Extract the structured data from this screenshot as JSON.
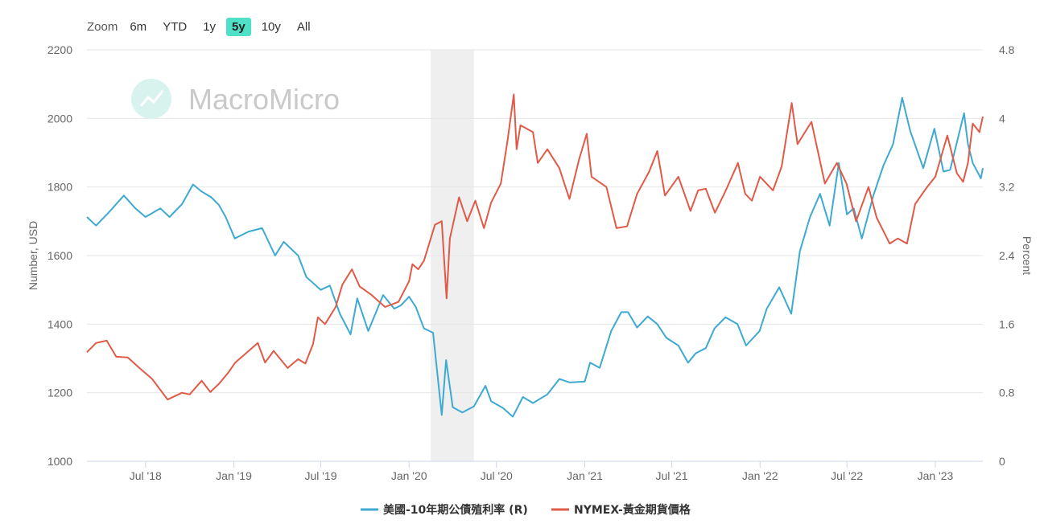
{
  "range_selector": {
    "zoom_label": "Zoom",
    "buttons": [
      "6m",
      "YTD",
      "1y",
      "5y",
      "10y",
      "All"
    ],
    "active": "5y"
  },
  "watermark": "MacroMicro",
  "colors": {
    "gold": "#e05a47",
    "yield": "#3ea9d1",
    "shade": "#efefef",
    "grid": "#e6e6e6",
    "accent": "#4fe0c8"
  },
  "chart_data": {
    "type": "line",
    "xlabel": "",
    "ylabel_left": "Number, USD",
    "ylabel_right": "Percent",
    "x_range": [
      "2018-03-01",
      "2023-04-10"
    ],
    "ylim_left": [
      1000,
      2200
    ],
    "ylim_right": [
      0,
      4.8
    ],
    "yticks_left": [
      1000,
      1200,
      1400,
      1600,
      1800,
      2000,
      2200
    ],
    "yticks_right": [
      "0",
      "0.8",
      "1.6",
      "2.4",
      "3.2",
      "4",
      "4.8"
    ],
    "xticks": [
      {
        "date": "2018-07-01",
        "label": "Jul '18"
      },
      {
        "date": "2019-01-01",
        "label": "Jan '19"
      },
      {
        "date": "2019-07-01",
        "label": "Jul '19"
      },
      {
        "date": "2020-01-01",
        "label": "Jan '20"
      },
      {
        "date": "2020-07-01",
        "label": "Jul '20"
      },
      {
        "date": "2021-01-01",
        "label": "Jan '21"
      },
      {
        "date": "2021-07-01",
        "label": "Jul '21"
      },
      {
        "date": "2022-01-01",
        "label": "Jan '22"
      },
      {
        "date": "2022-07-01",
        "label": "Jul '22"
      },
      {
        "date": "2023-01-01",
        "label": "Jan '23"
      }
    ],
    "shaded_band": [
      "2020-02-15",
      "2020-05-15"
    ],
    "grid": true,
    "legend_position": "bottom-center",
    "series": [
      {
        "name": "美國-10年期公債殖利率 (R)",
        "axis": "right",
        "points": [
          [
            "2018-03-01",
            2.85
          ],
          [
            "2018-03-20",
            2.75
          ],
          [
            "2018-04-15",
            2.9
          ],
          [
            "2018-05-17",
            3.1
          ],
          [
            "2018-06-10",
            2.95
          ],
          [
            "2018-07-01",
            2.85
          ],
          [
            "2018-08-01",
            2.95
          ],
          [
            "2018-08-20",
            2.85
          ],
          [
            "2018-09-15",
            3.0
          ],
          [
            "2018-10-08",
            3.23
          ],
          [
            "2018-10-25",
            3.15
          ],
          [
            "2018-11-15",
            3.08
          ],
          [
            "2018-12-01",
            2.99
          ],
          [
            "2018-12-15",
            2.85
          ],
          [
            "2019-01-03",
            2.6
          ],
          [
            "2019-02-01",
            2.68
          ],
          [
            "2019-03-01",
            2.72
          ],
          [
            "2019-03-28",
            2.4
          ],
          [
            "2019-04-15",
            2.56
          ],
          [
            "2019-05-15",
            2.4
          ],
          [
            "2019-06-01",
            2.15
          ],
          [
            "2019-07-01",
            2.0
          ],
          [
            "2019-07-20",
            2.05
          ],
          [
            "2019-08-10",
            1.72
          ],
          [
            "2019-09-01",
            1.48
          ],
          [
            "2019-09-15",
            1.9
          ],
          [
            "2019-10-08",
            1.52
          ],
          [
            "2019-11-08",
            1.94
          ],
          [
            "2019-12-01",
            1.78
          ],
          [
            "2019-12-15",
            1.82
          ],
          [
            "2020-01-01",
            1.92
          ],
          [
            "2020-01-15",
            1.8
          ],
          [
            "2020-02-01",
            1.55
          ],
          [
            "2020-02-20",
            1.5
          ],
          [
            "2020-03-09",
            0.54
          ],
          [
            "2020-03-18",
            1.18
          ],
          [
            "2020-04-01",
            0.63
          ],
          [
            "2020-04-21",
            0.57
          ],
          [
            "2020-05-15",
            0.64
          ],
          [
            "2020-06-08",
            0.88
          ],
          [
            "2020-06-20",
            0.7
          ],
          [
            "2020-07-15",
            0.62
          ],
          [
            "2020-08-04",
            0.52
          ],
          [
            "2020-08-25",
            0.75
          ],
          [
            "2020-09-15",
            0.68
          ],
          [
            "2020-10-15",
            0.78
          ],
          [
            "2020-11-09",
            0.96
          ],
          [
            "2020-12-01",
            0.92
          ],
          [
            "2021-01-01",
            0.93
          ],
          [
            "2021-01-12",
            1.15
          ],
          [
            "2021-02-01",
            1.09
          ],
          [
            "2021-02-25",
            1.52
          ],
          [
            "2021-03-18",
            1.74
          ],
          [
            "2021-04-01",
            1.74
          ],
          [
            "2021-04-20",
            1.56
          ],
          [
            "2021-05-12",
            1.69
          ],
          [
            "2021-06-01",
            1.6
          ],
          [
            "2021-06-20",
            1.44
          ],
          [
            "2021-07-15",
            1.35
          ],
          [
            "2021-08-04",
            1.15
          ],
          [
            "2021-08-20",
            1.26
          ],
          [
            "2021-09-10",
            1.32
          ],
          [
            "2021-09-28",
            1.55
          ],
          [
            "2021-10-21",
            1.68
          ],
          [
            "2021-11-15",
            1.6
          ],
          [
            "2021-12-03",
            1.35
          ],
          [
            "2021-12-31",
            1.52
          ],
          [
            "2022-01-15",
            1.78
          ],
          [
            "2022-02-10",
            2.03
          ],
          [
            "2022-03-07",
            1.72
          ],
          [
            "2022-03-25",
            2.45
          ],
          [
            "2022-04-15",
            2.85
          ],
          [
            "2022-05-06",
            3.12
          ],
          [
            "2022-05-26",
            2.75
          ],
          [
            "2022-06-14",
            3.48
          ],
          [
            "2022-07-01",
            2.88
          ],
          [
            "2022-07-15",
            2.95
          ],
          [
            "2022-08-01",
            2.6
          ],
          [
            "2022-08-25",
            3.1
          ],
          [
            "2022-09-15",
            3.45
          ],
          [
            "2022-10-05",
            3.7
          ],
          [
            "2022-10-24",
            4.24
          ],
          [
            "2022-11-10",
            3.85
          ],
          [
            "2022-12-07",
            3.42
          ],
          [
            "2022-12-30",
            3.88
          ],
          [
            "2023-01-18",
            3.38
          ],
          [
            "2023-02-01",
            3.4
          ],
          [
            "2023-03-02",
            4.06
          ],
          [
            "2023-03-10",
            3.7
          ],
          [
            "2023-03-20",
            3.48
          ],
          [
            "2023-04-06",
            3.3
          ],
          [
            "2023-04-10",
            3.42
          ]
        ]
      },
      {
        "name": "NYMEX-黃金期貨價格",
        "axis": "left",
        "points": [
          [
            "2018-03-01",
            1318
          ],
          [
            "2018-03-20",
            1345
          ],
          [
            "2018-04-11",
            1352
          ],
          [
            "2018-05-01",
            1305
          ],
          [
            "2018-05-25",
            1303
          ],
          [
            "2018-06-20",
            1270
          ],
          [
            "2018-07-15",
            1240
          ],
          [
            "2018-08-16",
            1180
          ],
          [
            "2018-09-15",
            1200
          ],
          [
            "2018-10-01",
            1195
          ],
          [
            "2018-10-26",
            1235
          ],
          [
            "2018-11-13",
            1202
          ],
          [
            "2018-12-01",
            1226
          ],
          [
            "2018-12-20",
            1258
          ],
          [
            "2019-01-04",
            1288
          ],
          [
            "2019-02-20",
            1345
          ],
          [
            "2019-03-07",
            1288
          ],
          [
            "2019-03-25",
            1322
          ],
          [
            "2019-04-23",
            1272
          ],
          [
            "2019-05-15",
            1298
          ],
          [
            "2019-05-30",
            1285
          ],
          [
            "2019-06-15",
            1342
          ],
          [
            "2019-06-25",
            1420
          ],
          [
            "2019-07-10",
            1400
          ],
          [
            "2019-08-01",
            1450
          ],
          [
            "2019-08-15",
            1515
          ],
          [
            "2019-09-04",
            1560
          ],
          [
            "2019-09-20",
            1510
          ],
          [
            "2019-10-15",
            1485
          ],
          [
            "2019-11-12",
            1450
          ],
          [
            "2019-12-10",
            1465
          ],
          [
            "2020-01-01",
            1525
          ],
          [
            "2020-01-08",
            1575
          ],
          [
            "2020-01-20",
            1560
          ],
          [
            "2020-02-01",
            1585
          ],
          [
            "2020-02-24",
            1690
          ],
          [
            "2020-03-09",
            1700
          ],
          [
            "2020-03-19",
            1475
          ],
          [
            "2020-03-26",
            1650
          ],
          [
            "2020-04-14",
            1770
          ],
          [
            "2020-05-01",
            1700
          ],
          [
            "2020-05-18",
            1760
          ],
          [
            "2020-06-05",
            1680
          ],
          [
            "2020-06-20",
            1755
          ],
          [
            "2020-07-10",
            1810
          ],
          [
            "2020-07-24",
            1935
          ],
          [
            "2020-08-06",
            2070
          ],
          [
            "2020-08-12",
            1910
          ],
          [
            "2020-08-20",
            1980
          ],
          [
            "2020-09-15",
            1960
          ],
          [
            "2020-09-25",
            1870
          ],
          [
            "2020-10-15",
            1910
          ],
          [
            "2020-11-09",
            1855
          ],
          [
            "2020-11-30",
            1765
          ],
          [
            "2020-12-20",
            1880
          ],
          [
            "2021-01-05",
            1955
          ],
          [
            "2021-01-15",
            1830
          ],
          [
            "2021-02-15",
            1800
          ],
          [
            "2021-03-08",
            1680
          ],
          [
            "2021-03-30",
            1685
          ],
          [
            "2021-04-20",
            1780
          ],
          [
            "2021-05-15",
            1845
          ],
          [
            "2021-06-01",
            1905
          ],
          [
            "2021-06-17",
            1775
          ],
          [
            "2021-07-15",
            1830
          ],
          [
            "2021-08-09",
            1730
          ],
          [
            "2021-08-25",
            1790
          ],
          [
            "2021-09-10",
            1795
          ],
          [
            "2021-09-29",
            1725
          ],
          [
            "2021-10-20",
            1785
          ],
          [
            "2021-11-16",
            1870
          ],
          [
            "2021-12-01",
            1780
          ],
          [
            "2021-12-15",
            1760
          ],
          [
            "2022-01-01",
            1830
          ],
          [
            "2022-01-28",
            1790
          ],
          [
            "2022-02-15",
            1860
          ],
          [
            "2022-03-08",
            2045
          ],
          [
            "2022-03-20",
            1925
          ],
          [
            "2022-04-18",
            1990
          ],
          [
            "2022-05-16",
            1810
          ],
          [
            "2022-06-10",
            1870
          ],
          [
            "2022-06-30",
            1810
          ],
          [
            "2022-07-20",
            1700
          ],
          [
            "2022-08-15",
            1800
          ],
          [
            "2022-09-01",
            1710
          ],
          [
            "2022-09-28",
            1635
          ],
          [
            "2022-10-15",
            1650
          ],
          [
            "2022-11-03",
            1635
          ],
          [
            "2022-11-20",
            1750
          ],
          [
            "2022-12-15",
            1800
          ],
          [
            "2023-01-01",
            1830
          ],
          [
            "2023-01-26",
            1950
          ],
          [
            "2023-02-15",
            1840
          ],
          [
            "2023-02-28",
            1815
          ],
          [
            "2023-03-10",
            1870
          ],
          [
            "2023-03-20",
            1985
          ],
          [
            "2023-04-03",
            1960
          ],
          [
            "2023-04-10",
            2005
          ]
        ]
      }
    ]
  }
}
